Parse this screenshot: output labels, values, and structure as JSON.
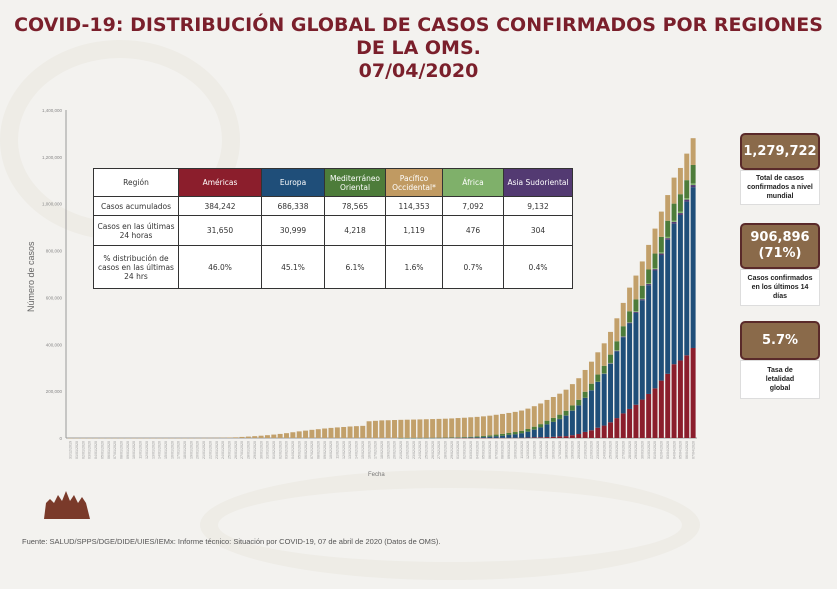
{
  "title_lines": [
    "COVID-19: DISTRIBUCIÓN GLOBAL DE CASOS CONFIRMADOS POR REGIONES",
    "DE LA OMS.",
    "07/04/2020"
  ],
  "table": {
    "headers": [
      "Región",
      "Américas",
      "Europa",
      "Mediterráneo Oriental",
      "Pacífico Occidental*",
      "África",
      "Asia Sudoriental"
    ],
    "header_colors": [
      "#ffffff",
      "#8b1e2c",
      "#1f4e79",
      "#4d7c3a",
      "#c09a62",
      "#7fb06a",
      "#533a72"
    ],
    "rows": [
      [
        "Casos acumulados",
        "384,242",
        "686,338",
        "78,565",
        "114,353",
        "7,092",
        "9,132"
      ],
      [
        "Casos en las últimas 24 horas",
        "31,650",
        "30,999",
        "4,218",
        "1,119",
        "476",
        "304"
      ],
      [
        "% distribución de casos en las últimas 24 hrs",
        "46.0%",
        "45.1%",
        "6.1%",
        "1.6%",
        "0.7%",
        "0.4%"
      ]
    ]
  },
  "stats": [
    {
      "value": "1,279,722",
      "label": "Total de casos confirmados a nivel mundial"
    },
    {
      "value": "906,896 (71%)",
      "label": "Casos confirmados en los últimos 14 días"
    },
    {
      "value": "5.7%",
      "label": "Tasa de letalidad global"
    }
  ],
  "footer": "Fuente: SALUD/SPPS/DGE/DIDE/UIES/IEMx: Informe técnico: Situación por COVID-19, 07 de abril de 2020 (Datos de OMS).",
  "chart_data": {
    "type": "bar",
    "stacked": true,
    "xlabel": "Fecha",
    "ylabel": "Número de casos",
    "ylim": [
      0,
      1400000
    ],
    "yticks": [
      0,
      200000,
      400000,
      600000,
      800000,
      1000000,
      1200000,
      1400000
    ],
    "grid": false,
    "x": [
      "31/12/2019",
      "01/01/2020",
      "02/01/2020",
      "03/01/2020",
      "04/01/2020",
      "05/01/2020",
      "06/01/2020",
      "07/01/2020",
      "08/01/2020",
      "09/01/2020",
      "10/01/2020",
      "11/01/2020",
      "12/01/2020",
      "13/01/2020",
      "14/01/2020",
      "15/01/2020",
      "16/01/2020",
      "17/01/2020",
      "18/01/2020",
      "19/01/2020",
      "20/01/2020",
      "21/01/2020",
      "22/01/2020",
      "23/01/2020",
      "24/01/2020",
      "25/01/2020",
      "26/01/2020",
      "27/01/2020",
      "28/01/2020",
      "29/01/2020",
      "30/01/2020",
      "31/01/2020",
      "01/02/2020",
      "02/02/2020",
      "03/02/2020",
      "04/02/2020",
      "05/02/2020",
      "06/02/2020",
      "07/02/2020",
      "08/02/2020",
      "09/02/2020",
      "10/02/2020",
      "11/02/2020",
      "12/02/2020",
      "13/02/2020",
      "14/02/2020",
      "15/02/2020",
      "16/02/2020",
      "17/02/2020",
      "18/02/2020",
      "19/02/2020",
      "20/02/2020",
      "21/02/2020",
      "22/02/2020",
      "23/02/2020",
      "24/02/2020",
      "25/02/2020",
      "26/02/2020",
      "27/02/2020",
      "28/02/2020",
      "29/02/2020",
      "01/03/2020",
      "02/03/2020",
      "03/03/2020",
      "04/03/2020",
      "05/03/2020",
      "06/03/2020",
      "07/03/2020",
      "08/03/2020",
      "09/03/2020",
      "10/03/2020",
      "11/03/2020",
      "12/03/2020",
      "13/03/2020",
      "14/03/2020",
      "15/03/2020",
      "16/03/2020",
      "17/03/2020",
      "18/03/2020",
      "19/03/2020",
      "20/03/2020",
      "21/03/2020",
      "22/03/2020",
      "23/03/2020",
      "24/03/2020",
      "25/03/2020",
      "26/03/2020",
      "27/03/2020",
      "28/03/2020",
      "29/03/2020",
      "30/03/2020",
      "31/03/2020",
      "01/04/2020",
      "02/04/2020",
      "03/04/2020",
      "04/04/2020",
      "05/04/2020",
      "06/04/2020",
      "07/04/2020"
    ],
    "series": [
      {
        "name": "Américas",
        "color": "#8b1e2c",
        "values": [
          0,
          0,
          0,
          0,
          0,
          0,
          0,
          0,
          0,
          0,
          0,
          0,
          0,
          0,
          0,
          0,
          0,
          0,
          0,
          0,
          0,
          0,
          0,
          0,
          0,
          0,
          0,
          0,
          0,
          0,
          0,
          0,
          0,
          0,
          0,
          0,
          0,
          0,
          0,
          0,
          0,
          0,
          0,
          0,
          0,
          0,
          0,
          0,
          0,
          0,
          0,
          0,
          0,
          0,
          0,
          0,
          0,
          0,
          0,
          0,
          0,
          100,
          120,
          150,
          200,
          300,
          400,
          500,
          600,
          700,
          800,
          1000,
          1700,
          2500,
          3000,
          4000,
          5000,
          7000,
          8000,
          12000,
          17000,
          26000,
          33000,
          44000,
          53000,
          67000,
          85000,
          105000,
          124000,
          142000,
          164000,
          188000,
          212000,
          245000,
          274000,
          315000,
          331000,
          353000,
          384242
        ]
      },
      {
        "name": "Europa",
        "color": "#1f4e79",
        "values": [
          0,
          0,
          0,
          0,
          0,
          0,
          0,
          0,
          0,
          0,
          0,
          0,
          0,
          0,
          0,
          0,
          0,
          0,
          0,
          0,
          0,
          0,
          0,
          0,
          0,
          0,
          0,
          0,
          0,
          0,
          0,
          0,
          0,
          0,
          0,
          0,
          0,
          0,
          0,
          0,
          0,
          0,
          0,
          0,
          0,
          0,
          0,
          0,
          0,
          0,
          0,
          0,
          50,
          100,
          150,
          250,
          400,
          550,
          700,
          1000,
          1400,
          2000,
          2200,
          2800,
          3600,
          4600,
          6000,
          8000,
          10000,
          13000,
          16000,
          20000,
          26000,
          34000,
          43000,
          55000,
          64000,
          74000,
          88000,
          105000,
          122000,
          145000,
          170000,
          195000,
          220000,
          250000,
          285000,
          325000,
          365000,
          392000,
          424000,
          464000,
          503000,
          536000,
          572000,
          600000,
          621000,
          656000,
          686338
        ]
      },
      {
        "name": "Asia Sudoriental",
        "color": "#533a72",
        "values": [
          0,
          0,
          0,
          0,
          0,
          0,
          0,
          0,
          0,
          0,
          0,
          0,
          0,
          0,
          0,
          0,
          0,
          0,
          0,
          0,
          0,
          0,
          0,
          0,
          0,
          0,
          0,
          0,
          0,
          0,
          0,
          0,
          0,
          0,
          0,
          0,
          0,
          0,
          0,
          0,
          0,
          0,
          0,
          0,
          0,
          0,
          0,
          0,
          0,
          0,
          0,
          0,
          0,
          0,
          0,
          0,
          0,
          0,
          0,
          0,
          0,
          50,
          50,
          60,
          70,
          80,
          90,
          100,
          110,
          120,
          130,
          150,
          180,
          200,
          250,
          300,
          350,
          400,
          450,
          550,
          650,
          800,
          1000,
          1200,
          1500,
          1900,
          2300,
          2900,
          3500,
          4000,
          4600,
          5200,
          5800,
          6400,
          7000,
          7600,
          8100,
          8600,
          9132
        ]
      },
      {
        "name": "África",
        "color": "#7fb06a",
        "values": [
          0,
          0,
          0,
          0,
          0,
          0,
          0,
          0,
          0,
          0,
          0,
          0,
          0,
          0,
          0,
          0,
          0,
          0,
          0,
          0,
          0,
          0,
          0,
          0,
          0,
          0,
          0,
          0,
          0,
          0,
          0,
          0,
          0,
          0,
          0,
          0,
          0,
          0,
          0,
          0,
          0,
          0,
          0,
          0,
          0,
          0,
          0,
          0,
          0,
          0,
          0,
          0,
          0,
          0,
          0,
          0,
          0,
          0,
          0,
          0,
          0,
          5,
          5,
          5,
          5,
          5,
          10,
          10,
          20,
          30,
          40,
          50,
          60,
          80,
          100,
          150,
          200,
          250,
          300,
          400,
          500,
          600,
          800,
          1000,
          1200,
          1500,
          1800,
          2200,
          2600,
          3000,
          3500,
          4000,
          4500,
          5000,
          5400,
          5800,
          6200,
          6600,
          7092
        ]
      },
      {
        "name": "Mediterráneo Oriental",
        "color": "#4d7c3a",
        "values": [
          0,
          0,
          0,
          0,
          0,
          0,
          0,
          0,
          0,
          0,
          0,
          0,
          0,
          0,
          0,
          0,
          0,
          0,
          0,
          0,
          0,
          0,
          0,
          0,
          0,
          0,
          0,
          0,
          0,
          0,
          0,
          0,
          0,
          0,
          0,
          0,
          0,
          0,
          0,
          0,
          0,
          0,
          0,
          0,
          0,
          0,
          0,
          0,
          0,
          0,
          0,
          0,
          20,
          30,
          60,
          100,
          150,
          250,
          350,
          400,
          600,
          1000,
          1600,
          2400,
          3000,
          3800,
          4800,
          6000,
          7000,
          7600,
          8500,
          9500,
          10500,
          11500,
          12900,
          14500,
          16500,
          18000,
          19500,
          21000,
          23000,
          25000,
          27000,
          29600,
          32400,
          35500,
          38800,
          42000,
          45800,
          50300,
          54000,
          58000,
          62000,
          66000,
          69000,
          72000,
          74300,
          76300,
          78565
        ]
      },
      {
        "name": "Pacífico Occidental",
        "color": "#c2a06a",
        "values": [
          27,
          27,
          27,
          27,
          44,
          44,
          59,
          59,
          59,
          59,
          41,
          41,
          41,
          41,
          41,
          41,
          41,
          41,
          45,
          62,
          282,
          314,
          581,
          846,
          1320,
          2014,
          2798,
          4593,
          6065,
          7818,
          9826,
          11953,
          14557,
          17391,
          20630,
          24554,
          28276,
          31481,
          34886,
          37558,
          40554,
          43103,
          45171,
          46997,
          49053,
          50580,
          51857,
          71429,
          73332,
          75204,
          75748,
          76769,
          77500,
          78000,
          78500,
          79000,
          79500,
          80000,
          80500,
          81000,
          81500,
          82000,
          82500,
          83000,
          83300,
          83600,
          84000,
          84500,
          85000,
          85500,
          86000,
          86500,
          87000,
          87500,
          88000,
          88500,
          89000,
          89500,
          90000,
          91000,
          92000,
          93000,
          94000,
          95000,
          96000,
          97000,
          98000,
          99500,
          101000,
          102000,
          103500,
          105000,
          106500,
          108000,
          109500,
          111000,
          112000,
          113300,
          114353
        ]
      }
    ]
  }
}
